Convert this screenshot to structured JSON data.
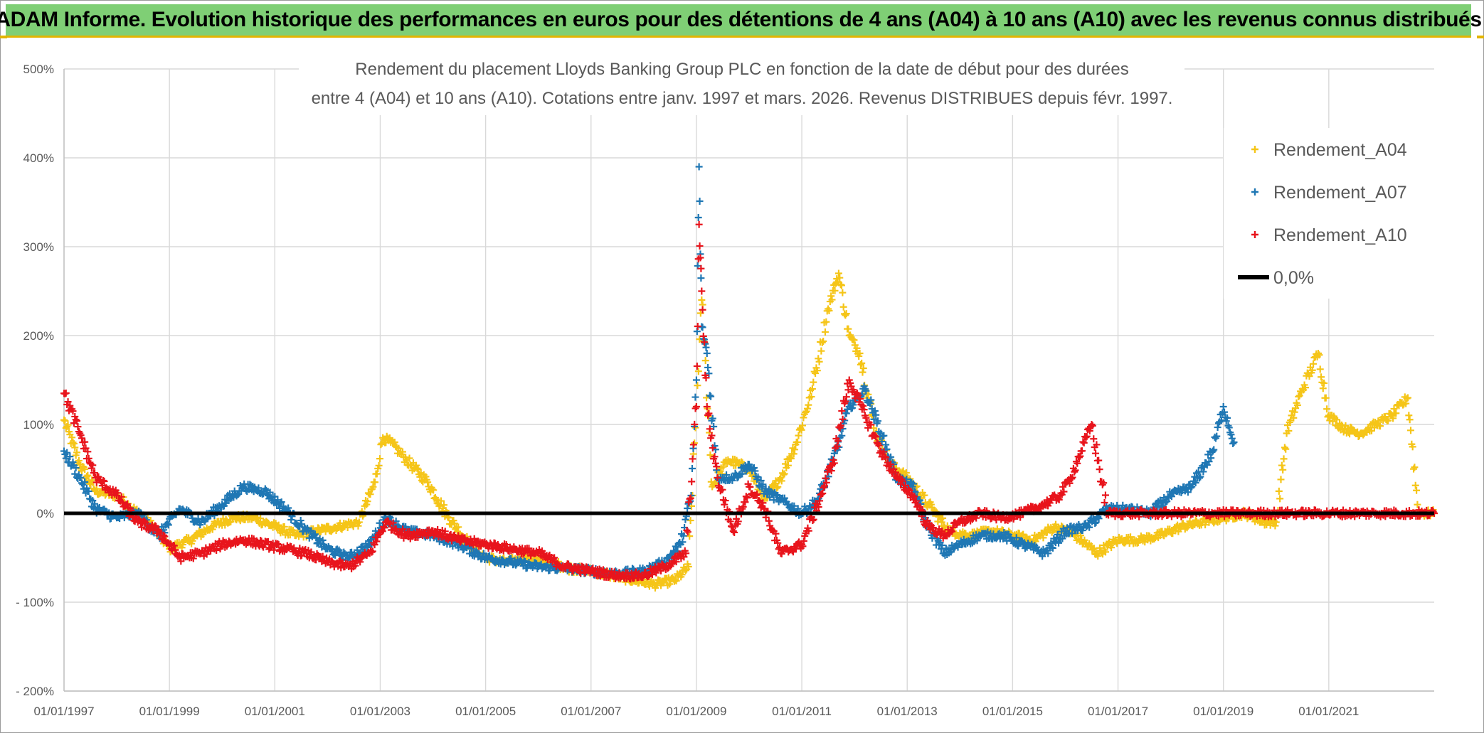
{
  "banner": {
    "text": "ADAM Informe. Evolution historique des performances en euros pour des détentions de 4 ans (A04) à 10 ans (A10) avec les revenus connus distribués",
    "background": "#7fcf75",
    "accent": "#e2b400"
  },
  "chart_data": {
    "type": "scatter",
    "title_lines": [
      "Rendement du placement Lloyds Banking Group PLC en fonction de la date de début pour des durées",
      "entre 4 (A04) et 10 ans (A10). Cotations entre janv. 1997 et mars. 2026. Revenus DISTRIBUES depuis févr. 1997."
    ],
    "xlabel": "",
    "ylabel": "",
    "ylim": [
      -200,
      500
    ],
    "xlim": [
      1997.0,
      2023.0
    ],
    "grid": true,
    "legend_position": "top-right",
    "y_ticks": [
      {
        "value": 500,
        "label": "500%"
      },
      {
        "value": 400,
        "label": "400%"
      },
      {
        "value": 300,
        "label": "300%"
      },
      {
        "value": 200,
        "label": "200%"
      },
      {
        "value": 100,
        "label": "100%"
      },
      {
        "value": 0,
        "label": "0%"
      },
      {
        "value": -100,
        "label": "- 100%"
      },
      {
        "value": -200,
        "label": "- 200%"
      }
    ],
    "x_ticks": [
      {
        "value": 1997.0,
        "label": "01/01/1997"
      },
      {
        "value": 1999.0,
        "label": "01/01/1999"
      },
      {
        "value": 2001.0,
        "label": "01/01/2001"
      },
      {
        "value": 2003.0,
        "label": "01/01/2003"
      },
      {
        "value": 2005.0,
        "label": "01/01/2005"
      },
      {
        "value": 2007.0,
        "label": "01/01/2007"
      },
      {
        "value": 2009.0,
        "label": "01/01/2009"
      },
      {
        "value": 2011.0,
        "label": "01/01/2011"
      },
      {
        "value": 2013.0,
        "label": "01/01/2013"
      },
      {
        "value": 2015.0,
        "label": "01/01/2015"
      },
      {
        "value": 2017.0,
        "label": "01/01/2017"
      },
      {
        "value": 2019.0,
        "label": "01/01/2019"
      },
      {
        "value": 2021.0,
        "label": "01/01/2021"
      }
    ],
    "series": [
      {
        "name": "Rendement_A04",
        "color": "#f5c518",
        "x": [
          1997.0,
          1997.3,
          1997.6,
          1998.0,
          1998.4,
          1998.7,
          1999.0,
          1999.4,
          1999.8,
          2000.2,
          2000.6,
          2001.0,
          2001.4,
          2001.8,
          2002.2,
          2002.6,
          2002.9,
          2003.05,
          2003.2,
          2003.5,
          2003.9,
          2004.3,
          2004.7,
          2005.0,
          2005.4,
          2005.8,
          2006.2,
          2006.6,
          2007.0,
          2007.4,
          2007.8,
          2008.2,
          2008.6,
          2008.85,
          2009.0,
          2009.1,
          2009.3,
          2009.6,
          2010.0,
          2010.3,
          2010.6,
          2010.9,
          2011.2,
          2011.5,
          2011.7,
          2011.9,
          2012.1,
          2012.4,
          2012.7,
          2013.0,
          2013.4,
          2013.8,
          2014.2,
          2014.6,
          2015.0,
          2015.4,
          2015.8,
          2016.2,
          2016.6,
          2017.0,
          2017.4,
          2017.8,
          2018.2,
          2018.6,
          2019.0,
          2019.4,
          2019.8,
          2020.0,
          2020.2,
          2020.5,
          2020.8,
          2021.0,
          2021.3,
          2021.6,
          2021.9,
          2022.2,
          2022.5,
          2022.7,
          2023.0
        ],
        "y": [
          105,
          55,
          25,
          20,
          0,
          -15,
          -40,
          -30,
          -15,
          -5,
          -5,
          -15,
          -25,
          -20,
          -15,
          -10,
          35,
          85,
          80,
          60,
          35,
          -5,
          -35,
          -50,
          -55,
          -50,
          -55,
          -62,
          -65,
          -70,
          -75,
          -80,
          -75,
          -60,
          120,
          240,
          30,
          60,
          50,
          15,
          40,
          80,
          140,
          230,
          270,
          200,
          180,
          90,
          55,
          40,
          10,
          -20,
          -25,
          -20,
          -25,
          -30,
          -15,
          -25,
          -45,
          -30,
          -30,
          -25,
          -15,
          -10,
          -5,
          0,
          -10,
          -10,
          90,
          140,
          180,
          110,
          95,
          90,
          100,
          110,
          130,
          0,
          0
        ]
      },
      {
        "name": "Rendement_A07",
        "color": "#1f77b4",
        "x": [
          1997.0,
          1997.3,
          1997.6,
          1998.0,
          1998.4,
          1998.8,
          1999.2,
          1999.6,
          2000.0,
          2000.4,
          2000.8,
          2001.2,
          2001.6,
          2002.0,
          2002.4,
          2002.8,
          2003.1,
          2003.5,
          2004.0,
          2004.5,
          2005.0,
          2005.5,
          2006.0,
          2006.5,
          2007.0,
          2007.5,
          2008.0,
          2008.4,
          2008.7,
          2008.9,
          2009.0,
          2009.05,
          2009.1,
          2009.2,
          2009.4,
          2009.7,
          2010.0,
          2010.3,
          2010.6,
          2011.0,
          2011.3,
          2011.6,
          2011.9,
          2012.2,
          2012.5,
          2012.8,
          2013.1,
          2013.4,
          2013.7,
          2014.0,
          2014.4,
          2014.8,
          2015.2,
          2015.6,
          2016.0,
          2016.4,
          2016.8,
          2017.2,
          2017.6,
          2018.0,
          2018.4,
          2018.8,
          2019.0,
          2019.2
        ],
        "y": [
          70,
          40,
          5,
          -5,
          0,
          -25,
          5,
          -10,
          10,
          30,
          25,
          5,
          -20,
          -40,
          -50,
          -35,
          -5,
          -20,
          -25,
          -35,
          -50,
          -55,
          -60,
          -62,
          -65,
          -68,
          -65,
          -55,
          -35,
          20,
          150,
          390,
          210,
          180,
          40,
          40,
          55,
          25,
          15,
          0,
          15,
          60,
          120,
          140,
          90,
          40,
          30,
          -15,
          -45,
          -35,
          -25,
          -25,
          -35,
          -45,
          -20,
          -15,
          5,
          5,
          0,
          20,
          30,
          70,
          120,
          80
        ]
      },
      {
        "name": "Rendement_A10",
        "color": "#e8141c",
        "x": [
          1997.0,
          1997.3,
          1997.6,
          1998.0,
          1998.4,
          1998.8,
          1999.2,
          1999.6,
          2000.0,
          2000.4,
          2000.8,
          2001.2,
          2001.6,
          2002.0,
          2002.4,
          2002.8,
          2003.1,
          2003.5,
          2004.0,
          2004.5,
          2005.0,
          2005.5,
          2006.0,
          2006.5,
          2007.0,
          2007.5,
          2008.0,
          2008.4,
          2008.8,
          2009.0,
          2009.05,
          2009.1,
          2009.2,
          2009.4,
          2009.7,
          2010.0,
          2010.3,
          2010.6,
          2011.0,
          2011.3,
          2011.6,
          2011.9,
          2012.2,
          2012.5,
          2012.8,
          2013.1,
          2013.4,
          2013.7,
          2014.0,
          2014.4,
          2014.8,
          2015.2,
          2015.6,
          2015.9,
          2016.1,
          2016.3,
          2016.5,
          2016.8,
          2017.2,
          2017.6,
          2018.0,
          2018.4,
          2018.8,
          2019.2,
          2019.6,
          2020.0,
          2020.4,
          2020.8,
          2021.2,
          2021.6,
          2022.0,
          2022.4,
          2022.8,
          2023.0
        ],
        "y": [
          135,
          90,
          40,
          20,
          -10,
          -20,
          -50,
          -45,
          -35,
          -30,
          -35,
          -40,
          -45,
          -55,
          -60,
          -45,
          -10,
          -25,
          -20,
          -30,
          -35,
          -40,
          -45,
          -60,
          -65,
          -70,
          -70,
          -60,
          -45,
          120,
          325,
          250,
          120,
          40,
          -20,
          30,
          5,
          -45,
          -35,
          10,
          60,
          150,
          110,
          70,
          40,
          20,
          -15,
          -25,
          -10,
          0,
          -5,
          0,
          10,
          20,
          40,
          70,
          100,
          0,
          0,
          0,
          0,
          0,
          0,
          0,
          0,
          0,
          0,
          0,
          0,
          0,
          0,
          0,
          0,
          0
        ]
      },
      {
        "name": "0,0%",
        "color": "#000000",
        "line": true,
        "x": [
          1997.0,
          2023.0
        ],
        "y": [
          0,
          0
        ]
      }
    ],
    "legend": [
      {
        "label": "Rendement_A04",
        "marker": "plus",
        "color": "#f5c518"
      },
      {
        "label": "Rendement_A07",
        "marker": "plus",
        "color": "#1f77b4"
      },
      {
        "label": "Rendement_A10",
        "marker": "plus",
        "color": "#e8141c"
      },
      {
        "label": "0,0%",
        "marker": "line",
        "color": "#000000"
      }
    ]
  }
}
